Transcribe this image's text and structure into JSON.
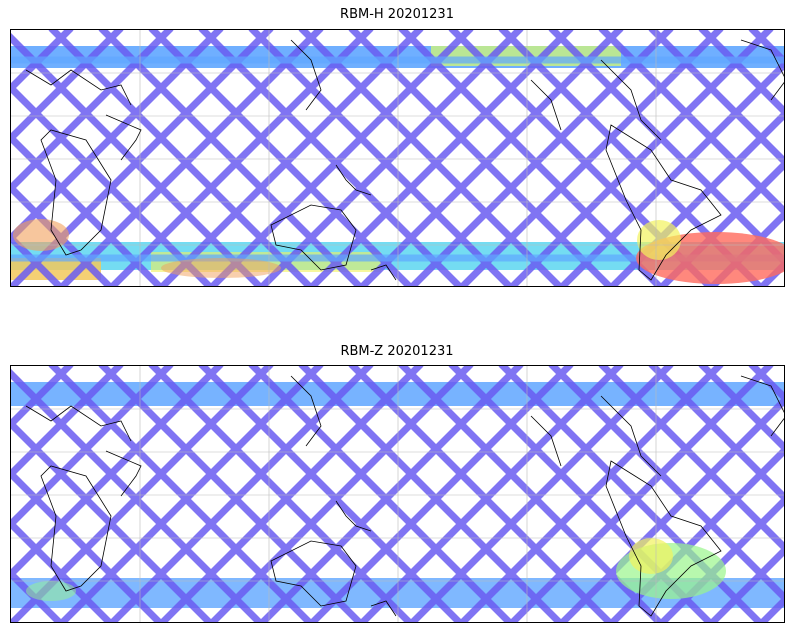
{
  "figure": {
    "top": {
      "title": "RBM-H 20201231"
    },
    "bottom": {
      "title": "RBM-Z 20201231"
    }
  },
  "colormap": {
    "low": "#6a5cf2",
    "mid_low": "#5fa6ff",
    "mid": "#5cd6f0",
    "mid_high": "#9af58c",
    "high_yellow": "#f2f25c",
    "high": "#ff6a5c"
  },
  "map": {
    "projection": "plate-carree",
    "gridlines": true,
    "coastlines": true
  }
}
